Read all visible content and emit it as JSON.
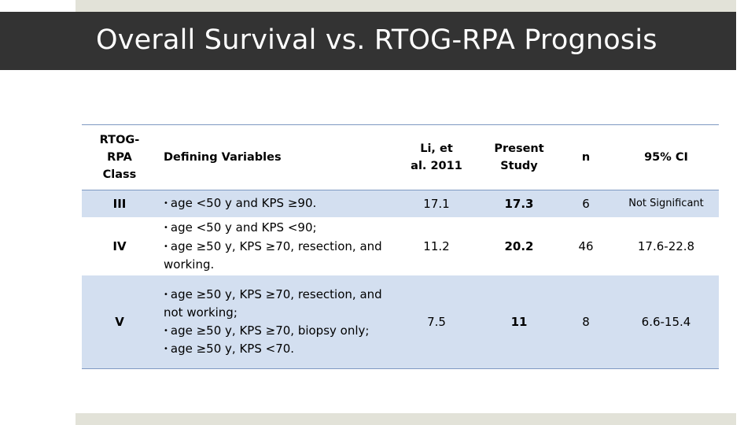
{
  "slide": {
    "title": "Overall Survival vs. RTOG-RPA Prognosis"
  },
  "table": {
    "headers": {
      "class": "RTOG-RPA Class",
      "variables": "Defining Variables",
      "li": "Li, et al. 2011",
      "present": "Present Study",
      "n": "n",
      "ci": "95% CI"
    },
    "rows": [
      {
        "class": "III",
        "variables": [
          "age <50 y and KPS ≥90."
        ],
        "li": "17.1",
        "present": "17.3",
        "n": "6",
        "ci": "Not Significant"
      },
      {
        "class": "IV",
        "variables": [
          "age <50 y and KPS <90;",
          "age ≥50 y, KPS ≥70, resection, and working."
        ],
        "li": "11.2",
        "present": "20.2",
        "n": "46",
        "ci": "17.6-22.8"
      },
      {
        "class": "V",
        "variables": [
          "age ≥50 y, KPS ≥70, resection, and not working;",
          "age ≥50 y, KPS ≥70, biopsy only;",
          "age ≥50 y, KPS <70."
        ],
        "li": "7.5",
        "present": "11",
        "n": "8",
        "ci": "6.6-15.4"
      }
    ]
  },
  "colors": {
    "title_bar": "#333333",
    "accent_strip": "#e2e2d8",
    "row_shade": "#d3dff0",
    "rule": "#7e99c2"
  }
}
